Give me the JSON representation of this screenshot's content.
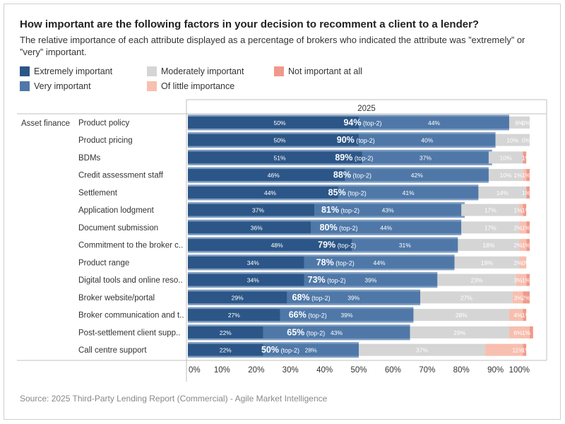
{
  "title": "How important are the following factors in your decision to recomment a client to a lender?",
  "subtitle": "The relative importance of each attribute displayed as a percentage of brokers who indicated the attribute was ”extremely” or ”very” important.",
  "legend": [
    {
      "label": "Extremely important",
      "color": "#2c5687"
    },
    {
      "label": "Very important",
      "color": "#4f78a8"
    },
    {
      "label": "Moderately important",
      "color": "#d5d5d5"
    },
    {
      "label": "Of little importance",
      "color": "#f7bfaf"
    },
    {
      "label": "Not important at all",
      "color": "#f0998a"
    }
  ],
  "footer": "Source: 2025 Third-Party Lending Report (Commercial) - Agile Market Intelligence",
  "chart_data": {
    "type": "bar",
    "stacked": true,
    "orientation": "horizontal",
    "column_header": "2025",
    "group_label": "Asset finance",
    "top2_suffix": "(top-2)",
    "xlim": [
      0,
      100
    ],
    "x_ticks": [
      "0%",
      "10%",
      "20%",
      "30%",
      "40%",
      "50%",
      "60%",
      "70%",
      "80%",
      "90%",
      "100%"
    ],
    "categories": [
      "Product policy",
      "Product pricing",
      "BDMs",
      "Credit assessment staff",
      "Settlement",
      "Application lodgment",
      "Document submission",
      "Commitment to the broker c..",
      "Product range",
      "Digital tools and online reso..",
      "Broker website/portal",
      "Broker communication and t..",
      "Post-settlement client supp..",
      "Call centre support"
    ],
    "top2": [
      94,
      90,
      89,
      88,
      85,
      81,
      80,
      79,
      78,
      73,
      68,
      66,
      65,
      50
    ],
    "series": [
      {
        "name": "Extremely important",
        "values": [
          50,
          50,
          51,
          46,
          44,
          37,
          36,
          48,
          34,
          34,
          29,
          27,
          22,
          22
        ]
      },
      {
        "name": "Very important",
        "values": [
          44,
          40,
          37,
          42,
          41,
          43,
          44,
          31,
          44,
          39,
          39,
          39,
          43,
          28
        ]
      },
      {
        "name": "Moderately important",
        "values": [
          6,
          10,
          10,
          10,
          14,
          17,
          17,
          18,
          19,
          23,
          27,
          28,
          29,
          37
        ]
      },
      {
        "name": "Of little importance",
        "values": [
          0,
          0,
          0,
          1,
          0,
          1,
          2,
          2,
          2,
          3,
          3,
          4,
          6,
          11
        ]
      },
      {
        "name": "Not important at all",
        "values": [
          0,
          0,
          1,
          1,
          1,
          1,
          1,
          1,
          0,
          1,
          2,
          1,
          1,
          1
        ]
      }
    ]
  }
}
